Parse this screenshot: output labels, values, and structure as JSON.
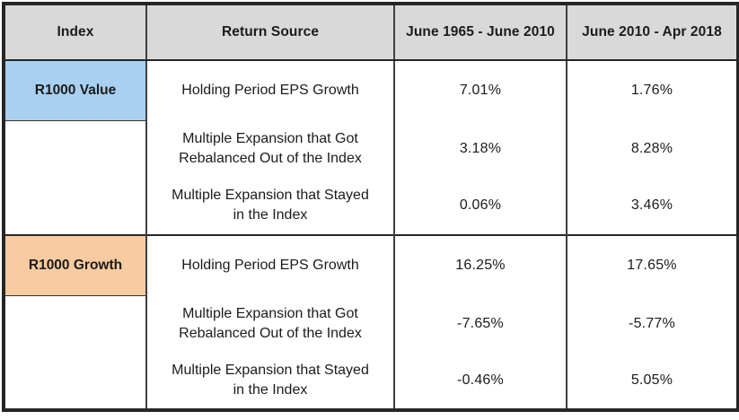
{
  "table": {
    "header_bg": "#D9D9D9",
    "columns": [
      "Index",
      "Return Source",
      "June 1965 - June 2010",
      "June 2010 - Apr 2018"
    ],
    "groups": [
      {
        "index": "R1000 Value",
        "color": "#A8D0F0",
        "rows": [
          {
            "source": "Holding Period EPS Growth",
            "period1": "7.01%",
            "period2": "1.76%"
          },
          {
            "source": "Multiple Expansion that Got Rebalanced Out of the Index",
            "period1": "3.18%",
            "period2": "8.28%"
          },
          {
            "source": "Multiple Expansion that Stayed in the Index",
            "period1": "0.06%",
            "period2": "3.46%"
          }
        ]
      },
      {
        "index": "R1000 Growth",
        "color": "#F8CBA0",
        "rows": [
          {
            "source": "Holding Period EPS Growth",
            "period1": "16.25%",
            "period2": "17.65%"
          },
          {
            "source": "Multiple Expansion that Got Rebalanced Out of the Index",
            "period1": "-7.65%",
            "period2": "-5.77%"
          },
          {
            "source": "Multiple Expansion that Stayed in the Index",
            "period1": "-0.46%",
            "period2": "5.05%"
          }
        ]
      }
    ]
  },
  "chart_data": {
    "type": "table",
    "columns": [
      "Index",
      "Return Source",
      "June 1965 - June 2010",
      "June 2010 - Apr 2018"
    ],
    "rows": [
      [
        "R1000 Value",
        "Holding Period EPS Growth",
        "7.01%",
        "1.76%"
      ],
      [
        "",
        "Multiple Expansion that Got Rebalanced Out of the Index",
        "3.18%",
        "8.28%"
      ],
      [
        "",
        "Multiple Expansion that Stayed in the Index",
        "0.06%",
        "3.46%"
      ],
      [
        "R1000 Growth",
        "Holding Period EPS Growth",
        "16.25%",
        "17.65%"
      ],
      [
        "",
        "Multiple Expansion that Got Rebalanced Out of the Index",
        "-7.65%",
        "-5.77%"
      ],
      [
        "",
        "Multiple Expansion that Stayed in the Index",
        "-0.46%",
        "5.05%"
      ]
    ]
  }
}
